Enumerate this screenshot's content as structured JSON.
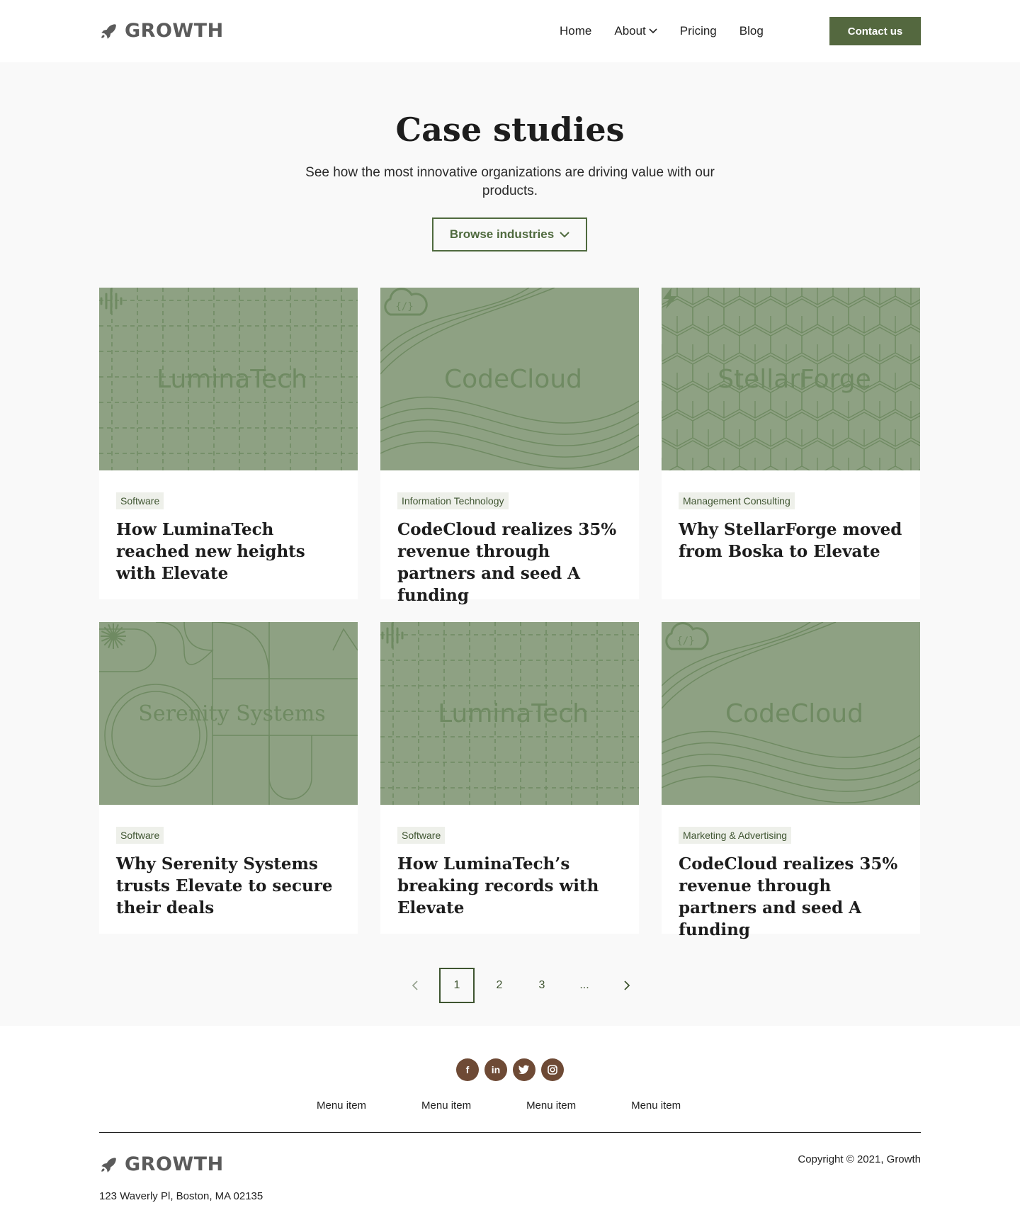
{
  "header": {
    "logo": "GROWTH",
    "nav": [
      "Home",
      "About",
      "Pricing",
      "Blog"
    ],
    "contact": "Contact us"
  },
  "hero": {
    "title": "Case studies",
    "subtitle": "See how the most innovative organizations are driving value with our products.",
    "browse": "Browse industries"
  },
  "cards": [
    {
      "brand": "LuminaTech",
      "tag": "Software",
      "title": "How LuminaTech reached new heights with Elevate",
      "pattern": "grid"
    },
    {
      "brand": "CodeCloud",
      "tag": "Information Technology",
      "title": "CodeCloud realizes 35% revenue through partners and seed A funding",
      "pattern": "waves"
    },
    {
      "brand": "StellarForge",
      "tag": "Management Consulting",
      "title": "Why StellarForge moved from Boska to Elevate",
      "pattern": "hex"
    },
    {
      "brand": "Serenity Systems",
      "tag": "Software",
      "title": "Why Serenity Systems trusts Elevate to secure their deals",
      "pattern": "geo"
    },
    {
      "brand": "LuminaTech",
      "tag": "Software",
      "title": "How LuminaTech’s breaking records with Elevate",
      "pattern": "grid"
    },
    {
      "brand": "CodeCloud",
      "tag": "Marketing & Advertising",
      "title": "CodeCloud realizes 35% revenue through partners and seed A funding",
      "pattern": "waves"
    }
  ],
  "pagination": {
    "pages": [
      "1",
      "2",
      "3",
      "..."
    ],
    "active": "1"
  },
  "footer": {
    "menu": [
      "Menu item",
      "Menu item",
      "Menu item",
      "Menu item"
    ],
    "logo": "GROWTH",
    "address": "123 Waverly Pl, Boston, MA 02135",
    "copyright": "Copyright © 2021, Growth",
    "socials": [
      "facebook-icon",
      "linkedin-icon",
      "twitter-icon",
      "instagram-icon"
    ]
  }
}
